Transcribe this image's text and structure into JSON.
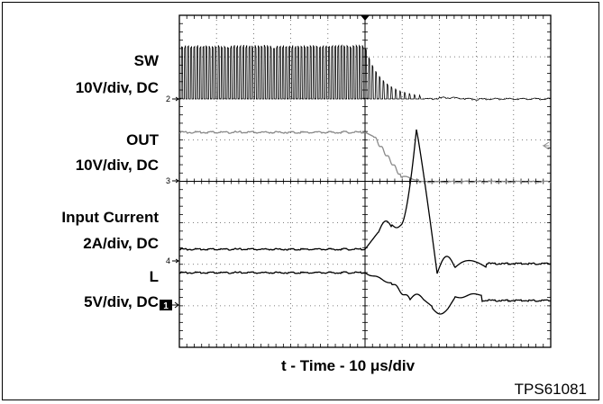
{
  "chart_data": {
    "type": "line",
    "x_divisions": 10,
    "y_divisions": 8,
    "xlabel_prefix": "t - Time - 10 ",
    "xlabel_unit": "μs/div",
    "figure_code": "TPS61081",
    "grid": true,
    "channels": [
      {
        "line1": "SW",
        "line2": "10V/div, DC",
        "marker": "2",
        "color": "#000000"
      },
      {
        "line1": "OUT",
        "line2": "10V/div, DC",
        "marker": "3",
        "color": "#8a8a8a"
      },
      {
        "line1": "Input Current",
        "line2": "2A/div, DC",
        "marker": "4",
        "color": "#000000"
      },
      {
        "line1": "L",
        "line2": "5V/div, DC",
        "marker": "1",
        "color": "#000000"
      }
    ]
  }
}
